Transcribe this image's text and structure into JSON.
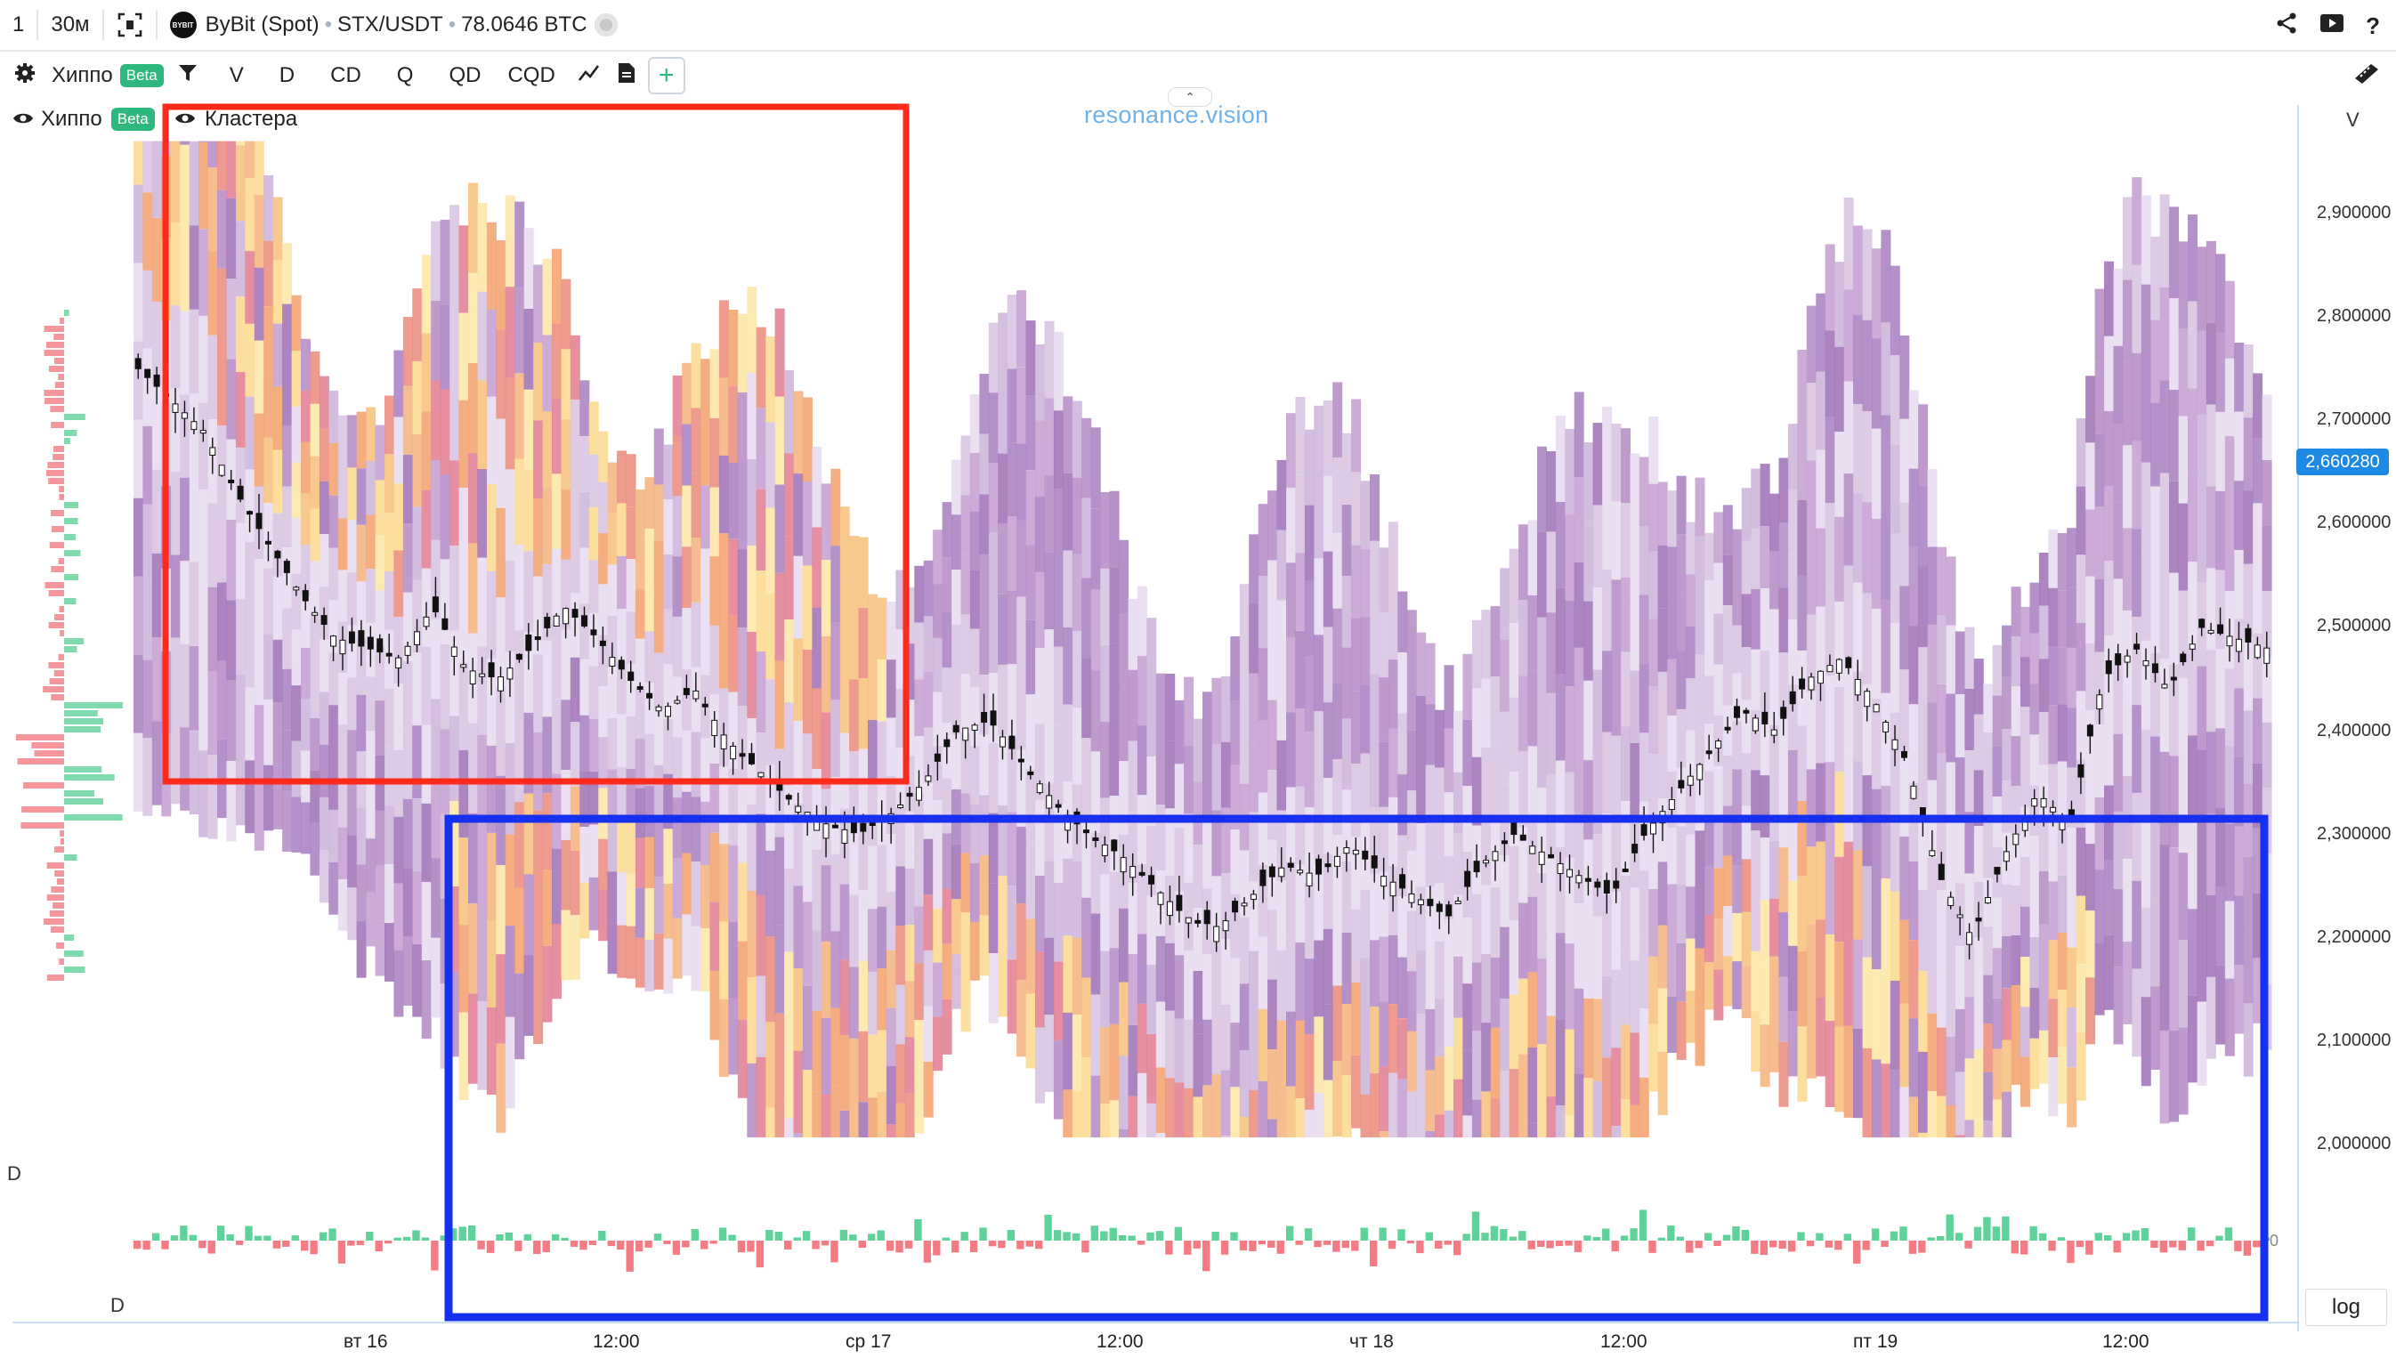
{
  "topbar": {
    "count": "1",
    "interval": "30м",
    "exchange": "ByBit (Spot)",
    "pair": "STX/USDT",
    "volume": "78.0646 BTC",
    "logo_text": "BYBIT"
  },
  "toolbar": {
    "indicator_name": "Хиппо",
    "beta_label": "Beta",
    "buttons": [
      "V",
      "D",
      "CD",
      "Q",
      "QD",
      "CQD"
    ],
    "add_label": "+"
  },
  "legend": {
    "layer1": "Хиппо",
    "layer1_badge": "Beta",
    "layer2": "Кластера"
  },
  "watermark": "resonance.vision",
  "price_axis": {
    "header": "V",
    "ticks": [
      "2,900000",
      "2,800000",
      "2,700000",
      "2,600000",
      "2,500000",
      "2,400000",
      "2,300000",
      "2,200000",
      "2,100000",
      "2,000000"
    ],
    "current_price": "2,660280",
    "zero_label": "0"
  },
  "panel_labels": {
    "left_d": "D",
    "bottom_d": "D"
  },
  "time_axis": [
    "вт 16",
    "12:00",
    "ср 17",
    "12:00",
    "чт 18",
    "12:00",
    "пт 19",
    "12:00"
  ],
  "log_button": "log",
  "colors": {
    "red_box": "#ff2a1a",
    "blue_box": "#1530ee",
    "buy": "#5fd19a",
    "sell": "#f47a83",
    "price_tag": "#1e88e5"
  },
  "chart_data": {
    "type": "candlestick-heatmap",
    "instrument": "STX/USDT",
    "price_range": [
      1.93,
      2.97
    ],
    "current_price": 2.66028,
    "close_path": [
      2.75,
      2.72,
      2.69,
      2.63,
      2.58,
      2.53,
      2.49,
      2.48,
      2.47,
      2.52,
      2.46,
      2.45,
      2.48,
      2.52,
      2.49,
      2.45,
      2.42,
      2.44,
      2.39,
      2.36,
      2.33,
      2.31,
      2.3,
      2.32,
      2.35,
      2.4,
      2.41,
      2.37,
      2.33,
      2.3,
      2.28,
      2.25,
      2.22,
      2.21,
      2.24,
      2.27,
      2.26,
      2.29,
      2.26,
      2.24,
      2.22,
      2.27,
      2.3,
      2.28,
      2.26,
      2.24,
      2.3,
      2.34,
      2.38,
      2.42,
      2.4,
      2.45,
      2.47,
      2.43,
      2.37,
      2.26,
      2.2,
      2.28,
      2.34,
      2.31,
      2.45,
      2.48,
      2.44,
      2.5,
      2.49,
      2.48
    ]
  }
}
